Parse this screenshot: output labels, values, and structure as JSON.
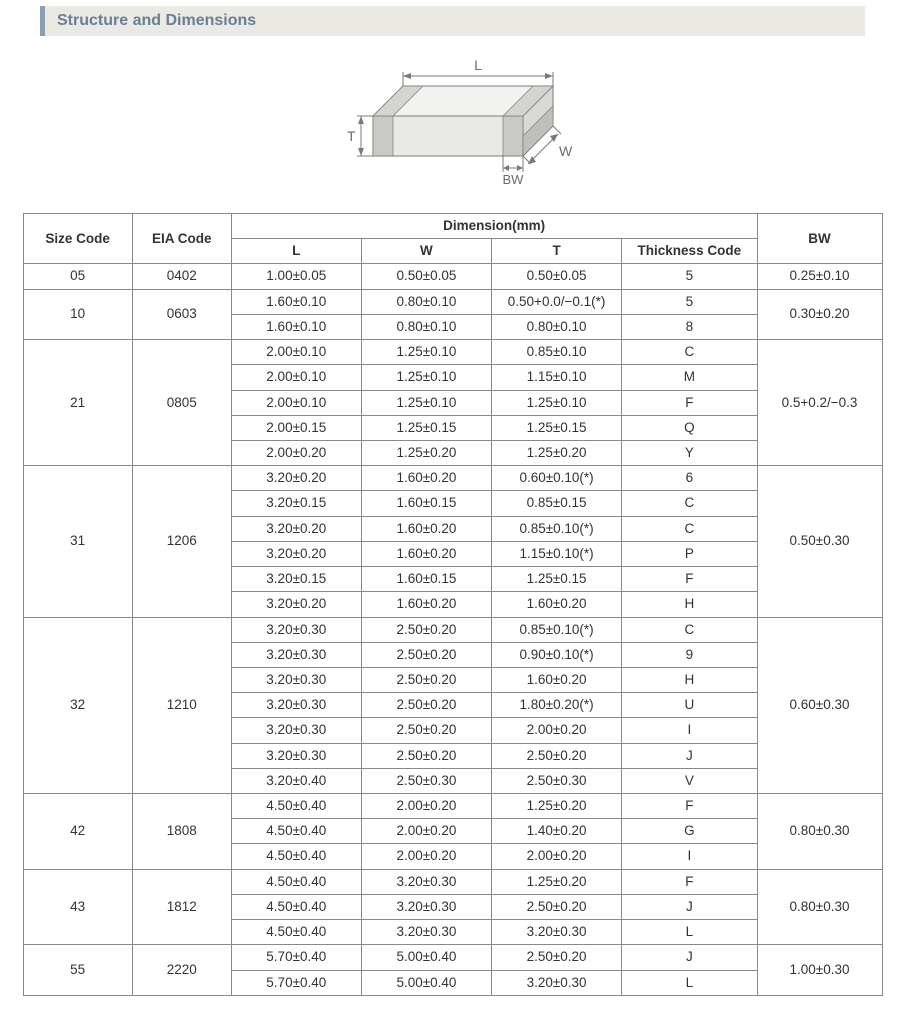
{
  "header": {
    "title": "Structure and Dimensions"
  },
  "diagram": {
    "labels": {
      "L": "L",
      "W": "W",
      "T": "T",
      "BW": "BW"
    },
    "stroke": "#7a7a7a",
    "fill_top": "#f2f2f0",
    "fill_side": "#d9d9d5",
    "fill_front": "#e9e9e6",
    "label_color": "#6b6b6b",
    "font_family": "Arial"
  },
  "table": {
    "columns": {
      "size": "Size Code",
      "eia": "EIA Code",
      "dimension_group": "Dimension(mm)",
      "L": "L",
      "W": "W",
      "T": "T",
      "thickness_code": "Thickness Code",
      "BW": "BW"
    },
    "groups": [
      {
        "size": "05",
        "eia": "0402",
        "bw": "0.25±0.10",
        "rows": [
          {
            "L": "1.00±0.05",
            "W": "0.50±0.05",
            "T": "0.50±0.05",
            "tc": "5"
          }
        ]
      },
      {
        "size": "10",
        "eia": "0603",
        "bw": "0.30±0.20",
        "rows": [
          {
            "L": "1.60±0.10",
            "W": "0.80±0.10",
            "T": "0.50+0.0/−0.1(*)",
            "tc": "5"
          },
          {
            "L": "1.60±0.10",
            "W": "0.80±0.10",
            "T": "0.80±0.10",
            "tc": "8"
          }
        ]
      },
      {
        "size": "21",
        "eia": "0805",
        "bw": "0.5+0.2/−0.3",
        "rows": [
          {
            "L": "2.00±0.10",
            "W": "1.25±0.10",
            "T": "0.85±0.10",
            "tc": "C"
          },
          {
            "L": "2.00±0.10",
            "W": "1.25±0.10",
            "T": "1.15±0.10",
            "tc": "M"
          },
          {
            "L": "2.00±0.10",
            "W": "1.25±0.10",
            "T": "1.25±0.10",
            "tc": "F"
          },
          {
            "L": "2.00±0.15",
            "W": "1.25±0.15",
            "T": "1.25±0.15",
            "tc": "Q"
          },
          {
            "L": "2.00±0.20",
            "W": "1.25±0.20",
            "T": "1.25±0.20",
            "tc": "Y"
          }
        ]
      },
      {
        "size": "31",
        "eia": "1206",
        "bw": "0.50±0.30",
        "rows": [
          {
            "L": "3.20±0.20",
            "W": "1.60±0.20",
            "T": "0.60±0.10(*)",
            "tc": "6"
          },
          {
            "L": "3.20±0.15",
            "W": "1.60±0.15",
            "T": "0.85±0.15",
            "tc": "C"
          },
          {
            "L": "3.20±0.20",
            "W": "1.60±0.20",
            "T": "0.85±0.10(*)",
            "tc": "C"
          },
          {
            "L": "3.20±0.20",
            "W": "1.60±0.20",
            "T": "1.15±0.10(*)",
            "tc": "P"
          },
          {
            "L": "3.20±0.15",
            "W": "1.60±0.15",
            "T": "1.25±0.15",
            "tc": "F"
          },
          {
            "L": "3.20±0.20",
            "W": "1.60±0.20",
            "T": "1.60±0.20",
            "tc": "H"
          }
        ]
      },
      {
        "size": "32",
        "eia": "1210",
        "bw": "0.60±0.30",
        "rows": [
          {
            "L": "3.20±0.30",
            "W": "2.50±0.20",
            "T": "0.85±0.10(*)",
            "tc": "C"
          },
          {
            "L": "3.20±0.30",
            "W": "2.50±0.20",
            "T": "0.90±0.10(*)",
            "tc": "9"
          },
          {
            "L": "3.20±0.30",
            "W": "2.50±0.20",
            "T": "1.60±0.20",
            "tc": "H"
          },
          {
            "L": "3.20±0.30",
            "W": "2.50±0.20",
            "T": "1.80±0.20(*)",
            "tc": "U"
          },
          {
            "L": "3.20±0.30",
            "W": "2.50±0.20",
            "T": "2.00±0.20",
            "tc": "I"
          },
          {
            "L": "3.20±0.30",
            "W": "2.50±0.20",
            "T": "2.50±0.20",
            "tc": "J"
          },
          {
            "L": "3.20±0.40",
            "W": "2.50±0.30",
            "T": "2.50±0.30",
            "tc": "V"
          }
        ]
      },
      {
        "size": "42",
        "eia": "1808",
        "bw": "0.80±0.30",
        "rows": [
          {
            "L": "4.50±0.40",
            "W": "2.00±0.20",
            "T": "1.25±0.20",
            "tc": "F"
          },
          {
            "L": "4.50±0.40",
            "W": "2.00±0.20",
            "T": "1.40±0.20",
            "tc": "G"
          },
          {
            "L": "4.50±0.40",
            "W": "2.00±0.20",
            "T": "2.00±0.20",
            "tc": "I"
          }
        ]
      },
      {
        "size": "43",
        "eia": "1812",
        "bw": "0.80±0.30",
        "rows": [
          {
            "L": "4.50±0.40",
            "W": "3.20±0.30",
            "T": "1.25±0.20",
            "tc": "F"
          },
          {
            "L": "4.50±0.40",
            "W": "3.20±0.30",
            "T": "2.50±0.20",
            "tc": "J"
          },
          {
            "L": "4.50±0.40",
            "W": "3.20±0.30",
            "T": "3.20±0.30",
            "tc": "L"
          }
        ]
      },
      {
        "size": "55",
        "eia": "2220",
        "bw": "1.00±0.30",
        "rows": [
          {
            "L": "5.70±0.40",
            "W": "5.00±0.40",
            "T": "2.50±0.20",
            "tc": "J"
          },
          {
            "L": "5.70±0.40",
            "W": "5.00±0.40",
            "T": "3.20±0.30",
            "tc": "L"
          }
        ]
      }
    ]
  }
}
